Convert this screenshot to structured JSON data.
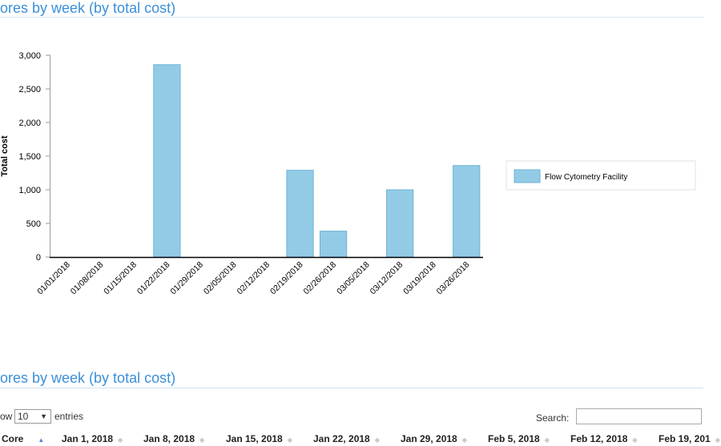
{
  "section1": {
    "title": "ores by week (by total cost)"
  },
  "chart_data": {
    "type": "bar",
    "y_label": "Total cost",
    "categories": [
      "01/01/2018",
      "01/08/2018",
      "01/15/2018",
      "01/22/2018",
      "01/29/2018",
      "02/05/2018",
      "02/12/2018",
      "02/19/2018",
      "02/26/2018",
      "03/05/2018",
      "03/12/2018",
      "03/19/2018",
      "03/26/2018"
    ],
    "series": [
      {
        "name": "Flow Cytometry Facility",
        "color": "#93cbe6",
        "values": [
          0,
          0,
          0,
          2860,
          0,
          0,
          0,
          1290,
          385,
          0,
          1000,
          0,
          1360
        ]
      }
    ],
    "ylim": [
      0,
      3000
    ],
    "yticks": [
      0,
      500,
      {
        "value": 1000,
        "label": "1,000"
      },
      {
        "value": 1500,
        "label": "1,500"
      },
      {
        "value": 2000,
        "label": "2,000"
      },
      {
        "value": 2500,
        "label": "2,500"
      },
      {
        "value": 3000,
        "label": "3,000"
      }
    ],
    "grid": false,
    "legend": "right"
  },
  "section2": {
    "title": "ores by week (by total cost)",
    "show_prefix": "ow",
    "page_length": "10",
    "show_suffix": "entries",
    "search_label": "Search:",
    "columns": [
      "Core",
      "Jan 1, 2018",
      "Jan 8, 2018",
      "Jan 15, 2018",
      "Jan 22, 2018",
      "Jan 29, 2018",
      "Feb 5, 2018",
      "Feb 12, 2018",
      "Feb 19, 201"
    ]
  }
}
